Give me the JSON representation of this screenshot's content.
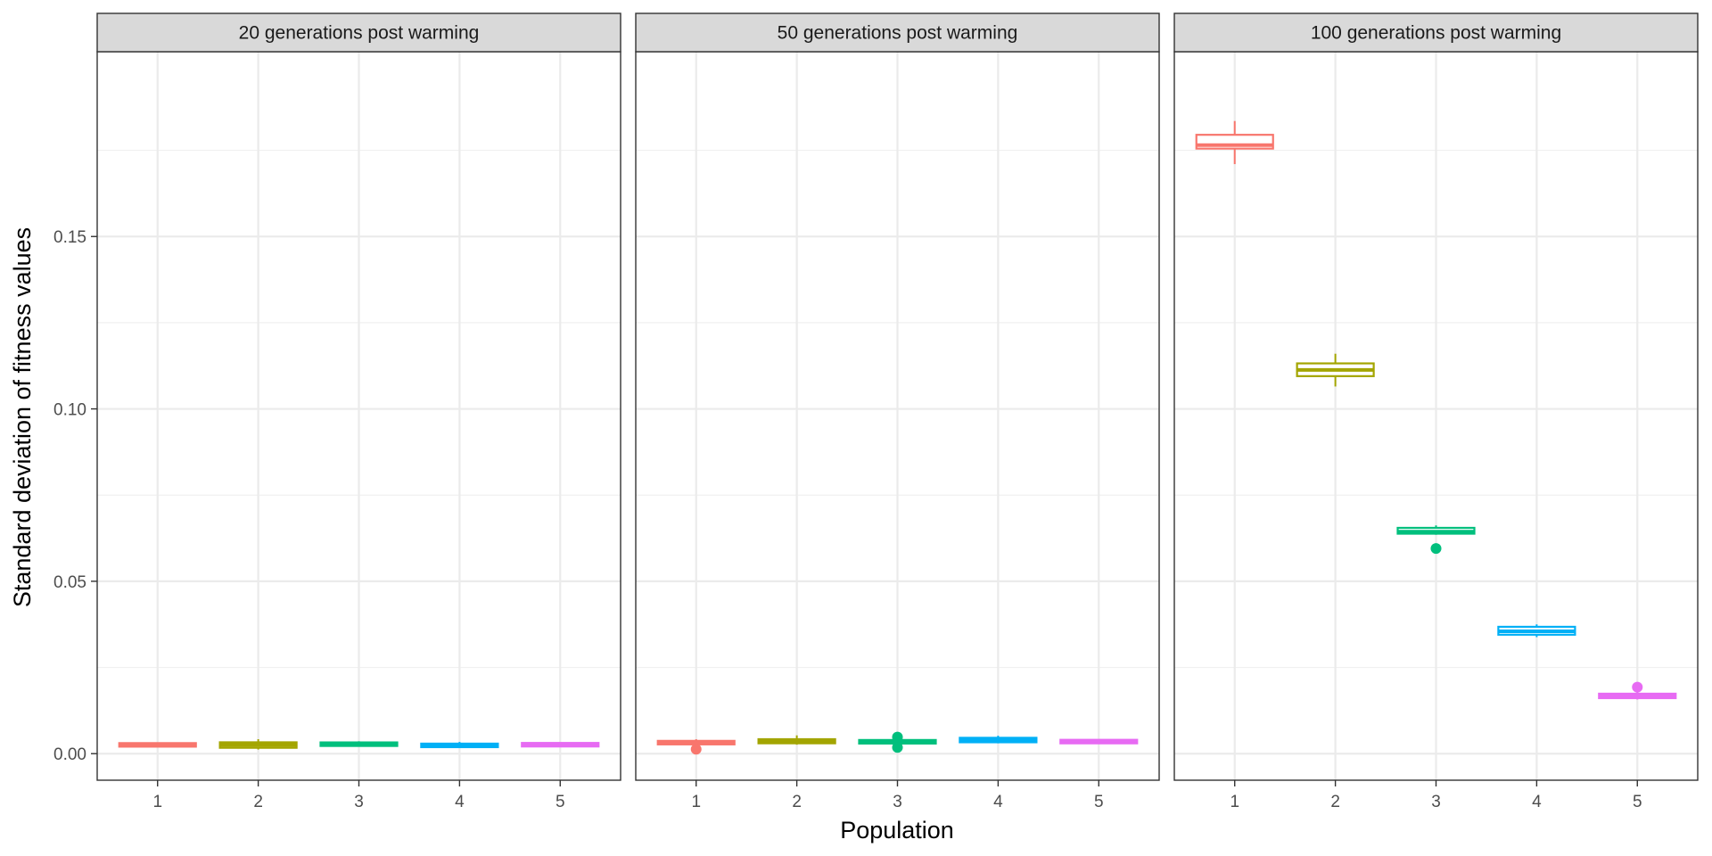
{
  "chart_data": {
    "type": "boxplot",
    "xlabel": "Population",
    "ylabel": "Standard deviation of fitness values",
    "ylim": [
      -0.0077,
      0.2036
    ],
    "yticks": [
      "0.00",
      "0.05",
      "0.10",
      "0.15"
    ],
    "ytick_values": [
      0.0,
      0.05,
      0.1,
      0.15
    ],
    "categories": [
      "1",
      "2",
      "3",
      "4",
      "5"
    ],
    "grid": true,
    "legend": "none",
    "colors": [
      "#F8766D",
      "#A3A500",
      "#00BF7D",
      "#00B0F6",
      "#E76BF3"
    ],
    "panels": [
      {
        "title": "20 generations post warming",
        "boxes": [
          {
            "category": "1",
            "min": 0.0022,
            "q1": 0.0023,
            "median": 0.0025,
            "q3": 0.0028,
            "max": 0.0031,
            "outliers": []
          },
          {
            "category": "2",
            "min": 0.0012,
            "q1": 0.0017,
            "median": 0.0025,
            "q3": 0.0033,
            "max": 0.0042,
            "outliers": []
          },
          {
            "category": "3",
            "min": 0.0021,
            "q1": 0.0024,
            "median": 0.0027,
            "q3": 0.0031,
            "max": 0.0036,
            "outliers": []
          },
          {
            "category": "4",
            "min": 0.0017,
            "q1": 0.002,
            "median": 0.0024,
            "q3": 0.0028,
            "max": 0.0034,
            "outliers": []
          },
          {
            "category": "5",
            "min": 0.002,
            "q1": 0.0023,
            "median": 0.0026,
            "q3": 0.0029,
            "max": 0.0033,
            "outliers": []
          }
        ]
      },
      {
        "title": "50 generations post warming",
        "boxes": [
          {
            "category": "1",
            "min": 0.0026,
            "q1": 0.0028,
            "median": 0.0032,
            "q3": 0.0036,
            "max": 0.0042,
            "outliers": [
              0.0013
            ]
          },
          {
            "category": "2",
            "min": 0.0026,
            "q1": 0.003,
            "median": 0.0036,
            "q3": 0.0042,
            "max": 0.0053,
            "outliers": []
          },
          {
            "category": "3",
            "min": 0.0029,
            "q1": 0.0031,
            "median": 0.0034,
            "q3": 0.0038,
            "max": 0.0041,
            "outliers": [
              0.0018,
              0.0048
            ]
          },
          {
            "category": "4",
            "min": 0.003,
            "q1": 0.0033,
            "median": 0.004,
            "q3": 0.0046,
            "max": 0.0052,
            "outliers": []
          },
          {
            "category": "5",
            "min": 0.0029,
            "q1": 0.0031,
            "median": 0.0035,
            "q3": 0.0039,
            "max": 0.0042,
            "outliers": []
          }
        ]
      },
      {
        "title": "100 generations post warming",
        "boxes": [
          {
            "category": "1",
            "min": 0.171,
            "q1": 0.1755,
            "median": 0.1765,
            "q3": 0.1795,
            "max": 0.1835,
            "outliers": []
          },
          {
            "category": "2",
            "min": 0.1065,
            "q1": 0.1095,
            "median": 0.1113,
            "q3": 0.1132,
            "max": 0.116,
            "outliers": []
          },
          {
            "category": "3",
            "min": 0.0635,
            "q1": 0.0638,
            "median": 0.0644,
            "q3": 0.0655,
            "max": 0.0662,
            "outliers": [
              0.0595
            ]
          },
          {
            "category": "4",
            "min": 0.0338,
            "q1": 0.0345,
            "median": 0.0355,
            "q3": 0.0368,
            "max": 0.0375,
            "outliers": []
          },
          {
            "category": "5",
            "min": 0.0157,
            "q1": 0.0161,
            "median": 0.0168,
            "q3": 0.0174,
            "max": 0.018,
            "outliers": [
              0.0193
            ]
          }
        ]
      }
    ]
  }
}
